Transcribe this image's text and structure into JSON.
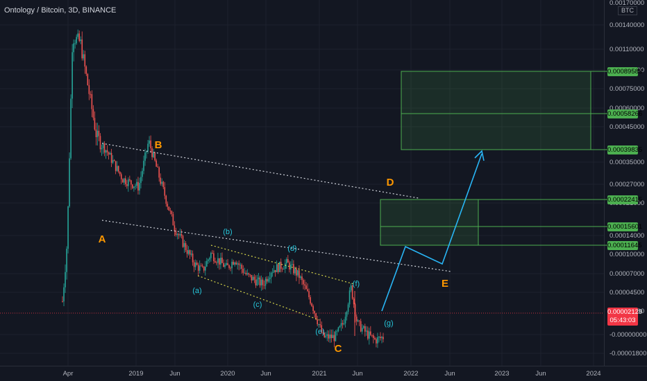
{
  "title": "Ontology / Bitcoin, 3D, BINANCE",
  "unit_label": "BTC",
  "current_price": {
    "value": "0.00002129",
    "countdown": "05:43:03"
  },
  "price_tags": [
    "0.00089588",
    "0.00058266",
    "0.00039835",
    "0.00022415",
    "0.00015601",
    "0.00011645"
  ],
  "wave_labels": {
    "major": [
      "A",
      "B",
      "C",
      "D",
      "E"
    ],
    "minor": [
      "(a)",
      "(b)",
      "(c)",
      "(d)",
      "(e)",
      "(f)",
      "(g)"
    ]
  },
  "colors": {
    "background": "#131722",
    "grid": "#1e222d",
    "candle_up": "#26a69a",
    "candle_down": "#ef5350",
    "major_label": "#ff9800",
    "minor_label": "#26c6da",
    "projection": "#29b6f6",
    "target_zone": "#4caf50",
    "current_price_line": "#f23645"
  },
  "chart_data": {
    "type": "candlestick",
    "title": "Ontology / Bitcoin, 3D, BINANCE",
    "y_scale": "log",
    "y_axis_ticks": [
      "0.00170000",
      "0.00140000",
      "0.00110000",
      "0.00090000",
      "0.00075000",
      "0.00060000",
      "0.00045000",
      "0.00035000",
      "0.00027000",
      "0.00021000",
      "0.00014000",
      "0.00010000",
      "0.00007000",
      "0.00004500",
      "0.00002500",
      "-0.00000000",
      "-0.00001800"
    ],
    "x_axis_ticks": [
      "Apr",
      "2019",
      "Jun",
      "2020",
      "Jun",
      "2021",
      "Jun",
      "2022",
      "Jun",
      "2023",
      "Jun",
      "2024"
    ],
    "price_path": [
      {
        "x": 0.0,
        "y": 4e-05
      },
      {
        "x": 0.012,
        "y": 9e-05
      },
      {
        "x": 0.025,
        "y": 0.0013
      },
      {
        "x": 0.045,
        "y": 0.0012
      },
      {
        "x": 0.085,
        "y": 0.00035
      },
      {
        "x": 0.11,
        "y": 0.00029
      },
      {
        "x": 0.15,
        "y": 0.0002
      },
      {
        "x": 0.19,
        "y": 0.00018
      },
      {
        "x": 0.215,
        "y": 0.00033
      },
      {
        "x": 0.24,
        "y": 0.00021
      },
      {
        "x": 0.28,
        "y": 0.000105
      },
      {
        "x": 0.33,
        "y": 6.5e-05
      },
      {
        "x": 0.35,
        "y": 6e-05
      },
      {
        "x": 0.37,
        "y": 7.5e-05
      },
      {
        "x": 0.41,
        "y": 6.2e-05
      },
      {
        "x": 0.43,
        "y": 7e-05
      },
      {
        "x": 0.46,
        "y": 5.6e-05
      },
      {
        "x": 0.5,
        "y": 5e-05
      },
      {
        "x": 0.52,
        "y": 6e-05
      },
      {
        "x": 0.56,
        "y": 6.6e-05
      },
      {
        "x": 0.59,
        "y": 5.6e-05
      },
      {
        "x": 0.62,
        "y": 4e-05
      },
      {
        "x": 0.65,
        "y": 2.5e-05
      },
      {
        "x": 0.68,
        "y": 2.5e-05
      },
      {
        "x": 0.7,
        "y": 3e-05
      },
      {
        "x": 0.72,
        "y": 4.8e-05
      },
      {
        "x": 0.735,
        "y": 3e-05
      },
      {
        "x": 0.76,
        "y": 2.6e-05
      },
      {
        "x": 0.78,
        "y": 2.4e-05
      },
      {
        "x": 0.8,
        "y": 2.5e-05
      }
    ],
    "target_zones": [
      {
        "low": "0.00039835",
        "mid": "0.00058266",
        "high": "0.00089588"
      },
      {
        "low": "0.00011645",
        "mid": "0.00015601",
        "high": "0.00022415"
      }
    ]
  }
}
